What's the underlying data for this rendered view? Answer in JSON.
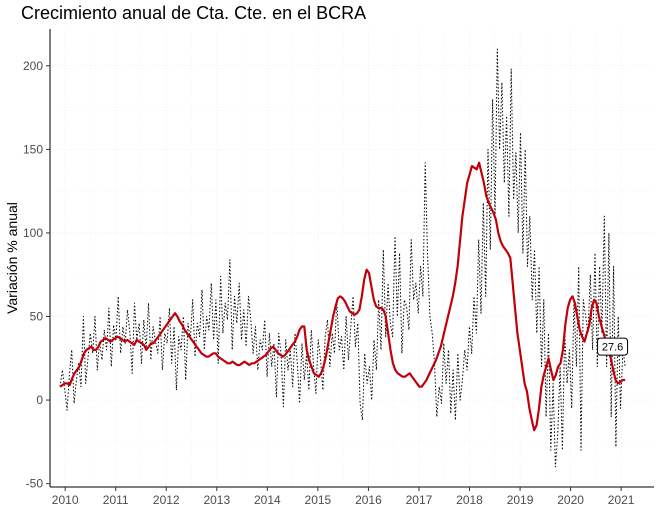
{
  "chart_data": {
    "type": "line",
    "title": "Crecimiento anual de Cta. Cte. en el BCRA",
    "xlabel": "",
    "ylabel": "Variación % anual",
    "xlim": [
      2009.7,
      2021.65
    ],
    "ylim": [
      -52,
      222
    ],
    "x_ticks": [
      2010,
      2011,
      2012,
      2013,
      2014,
      2015,
      2016,
      2017,
      2018,
      2019,
      2020,
      2021
    ],
    "x_tick_labels": [
      "2010",
      "2011",
      "2012",
      "2013",
      "2014",
      "2015",
      "2016",
      "2017",
      "2018",
      "2019",
      "2020",
      "2021"
    ],
    "y_ticks": [
      -50,
      0,
      50,
      100,
      150,
      200
    ],
    "y_tick_labels": [
      "-50",
      "0",
      "50",
      "100",
      "150",
      "200"
    ],
    "grid": true,
    "background": "#ffffff",
    "colors": {
      "daily": "#000000",
      "trend": "#c0000b",
      "grid": "#ececec"
    },
    "annotation": {
      "text": "27.6",
      "x": 2020.83,
      "y": 32
    },
    "series": [
      {
        "style": "dotted",
        "color": "#000000",
        "x_start": 2009.9,
        "x_end": 2021.08,
        "values": [
          8,
          18,
          6,
          -6,
          15,
          30,
          -2,
          12,
          22,
          8,
          50,
          10,
          25,
          40,
          28,
          50,
          18,
          35,
          24,
          42,
          30,
          55,
          20,
          45,
          36,
          62,
          28,
          44,
          34,
          54,
          40,
          16,
          58,
          36,
          46,
          22,
          48,
          30,
          58,
          24,
          44,
          35,
          28,
          50,
          18,
          40,
          34,
          55,
          22,
          44,
          6,
          38,
          30,
          50,
          12,
          46,
          36,
          60,
          26,
          46,
          38,
          66,
          30,
          50,
          42,
          70,
          36,
          60,
          22,
          74,
          40,
          58,
          48,
          84,
          30,
          62,
          46,
          70,
          36,
          54,
          32,
          62,
          48,
          28,
          44,
          18,
          36,
          30,
          48,
          14,
          40,
          20,
          34,
          2,
          40,
          28,
          -4,
          36,
          18,
          30,
          8,
          40,
          22,
          -2,
          34,
          12,
          28,
          6,
          42,
          20,
          4,
          36,
          24,
          6,
          38,
          48,
          20,
          40,
          28,
          60,
          30,
          38,
          18,
          50,
          24,
          44,
          62,
          32,
          46,
          -2,
          -12,
          28,
          10,
          20,
          0,
          36,
          18,
          60,
          30,
          90,
          38,
          70,
          46,
          38,
          98,
          50,
          88,
          28,
          60,
          56,
          42,
          96,
          60,
          70,
          52,
          80,
          62,
          142,
          88,
          50,
          40,
          22,
          -10,
          8,
          -2,
          34,
          10,
          30,
          -8,
          18,
          -12,
          28,
          0,
          12,
          30,
          18,
          44,
          28,
          62,
          40,
          96,
          52,
          118,
          62,
          150,
          90,
          180,
          110,
          210,
          150,
          190,
          130,
          170,
          110,
          198,
          120,
          148,
          100,
          160,
          88,
          150,
          80,
          110,
          60,
          90,
          40,
          80,
          20,
          60,
          -10,
          40,
          -30,
          10,
          -40,
          -20,
          20,
          -30,
          40,
          10,
          30,
          -5,
          60,
          20,
          80,
          -30,
          60,
          50,
          40,
          75,
          30,
          88,
          20,
          80,
          40,
          110,
          20,
          100,
          -10,
          80,
          -28,
          50,
          -5,
          30,
          20
        ]
      },
      {
        "style": "solid",
        "color": "#c0000b",
        "x_start": 2009.9,
        "x_end": 2021.08,
        "values": [
          8,
          9,
          10,
          10,
          9,
          13,
          16,
          18,
          20,
          24,
          28,
          30,
          31,
          32,
          30,
          30,
          32,
          35,
          36,
          37,
          36,
          35,
          36,
          37,
          38,
          37,
          36,
          35,
          36,
          35,
          34,
          33,
          36,
          35,
          34,
          33,
          30,
          32,
          34,
          34,
          36,
          38,
          40,
          42,
          44,
          46,
          48,
          50,
          52,
          50,
          47,
          45,
          42,
          40,
          38,
          36,
          34,
          32,
          30,
          28,
          27,
          26,
          26,
          27,
          28,
          28,
          26,
          25,
          24,
          23,
          22,
          22,
          23,
          22,
          21,
          21,
          22,
          23,
          22,
          21,
          22,
          22,
          23,
          24,
          25,
          26,
          27,
          29,
          31,
          32,
          30,
          28,
          27,
          26,
          27,
          29,
          31,
          33,
          35,
          38,
          42,
          44,
          44,
          30,
          24,
          20,
          16,
          15,
          14,
          16,
          20,
          26,
          34,
          42,
          50,
          56,
          61,
          62,
          61,
          59,
          56,
          53,
          52,
          51,
          52,
          54,
          62,
          72,
          78,
          76,
          68,
          60,
          56,
          55,
          55,
          54,
          50,
          40,
          30,
          22,
          18,
          16,
          15,
          14,
          14,
          15,
          16,
          14,
          12,
          10,
          8,
          8,
          10,
          12,
          15,
          18,
          21,
          24,
          28,
          32,
          38,
          44,
          50,
          56,
          62,
          70,
          80,
          95,
          110,
          120,
          130,
          135,
          140,
          139,
          138,
          142,
          136,
          130,
          122,
          118,
          115,
          112,
          108,
          100,
          95,
          92,
          90,
          88,
          85,
          70,
          55,
          40,
          30,
          20,
          10,
          5,
          -5,
          -12,
          -18,
          -15,
          -5,
          8,
          15,
          20,
          25,
          18,
          12,
          15,
          20,
          22,
          30,
          45,
          55,
          60,
          62,
          58,
          50,
          42,
          38,
          35,
          40,
          45,
          55,
          60,
          58,
          50,
          45,
          40,
          35,
          30,
          25,
          18,
          12,
          10,
          11,
          12,
          12
        ]
      }
    ]
  }
}
